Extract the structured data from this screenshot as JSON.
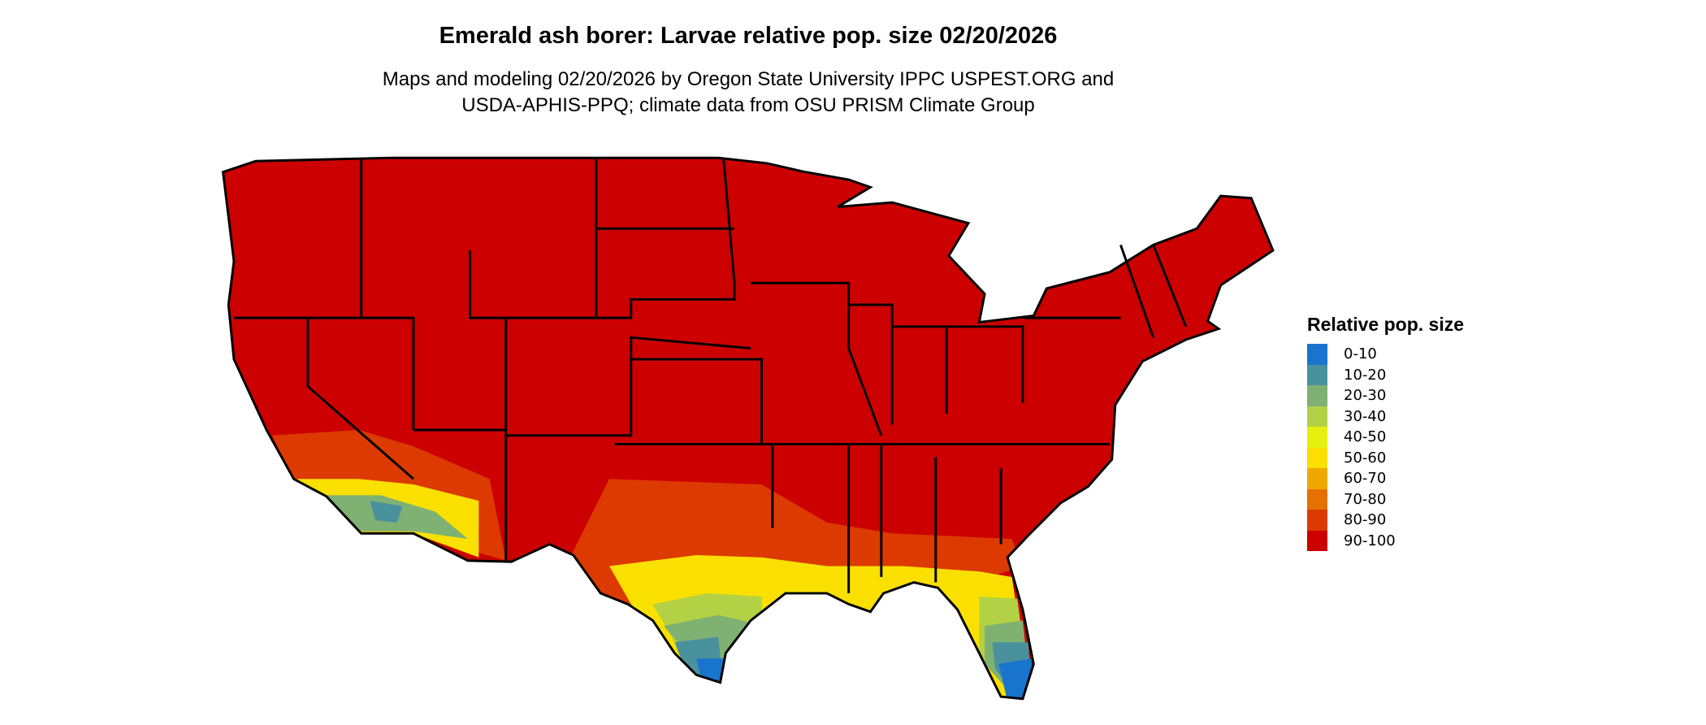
{
  "title": "Emerald ash borer: Larvae relative pop. size 02/20/2026",
  "subtitle_lines": [
    "Maps and modeling 02/20/2026 by Oregon State University IPPC USPEST.ORG and",
    "USDA-APHIS-PPQ; climate data from OSU PRISM Climate Group"
  ],
  "legend": {
    "title": "Relative pop. size",
    "items": [
      {
        "label": "0-10",
        "color": "#1874cd"
      },
      {
        "label": "10-20",
        "color": "#4a919e"
      },
      {
        "label": "20-30",
        "color": "#7fb173"
      },
      {
        "label": "30-40",
        "color": "#b3d144"
      },
      {
        "label": "40-50",
        "color": "#e5f010"
      },
      {
        "label": "50-60",
        "color": "#f9e000"
      },
      {
        "label": "60-70",
        "color": "#f0a800"
      },
      {
        "label": "70-80",
        "color": "#e57200"
      },
      {
        "label": "80-90",
        "color": "#dc3a00"
      },
      {
        "label": "90-100",
        "color": "#cc0000"
      }
    ]
  }
}
